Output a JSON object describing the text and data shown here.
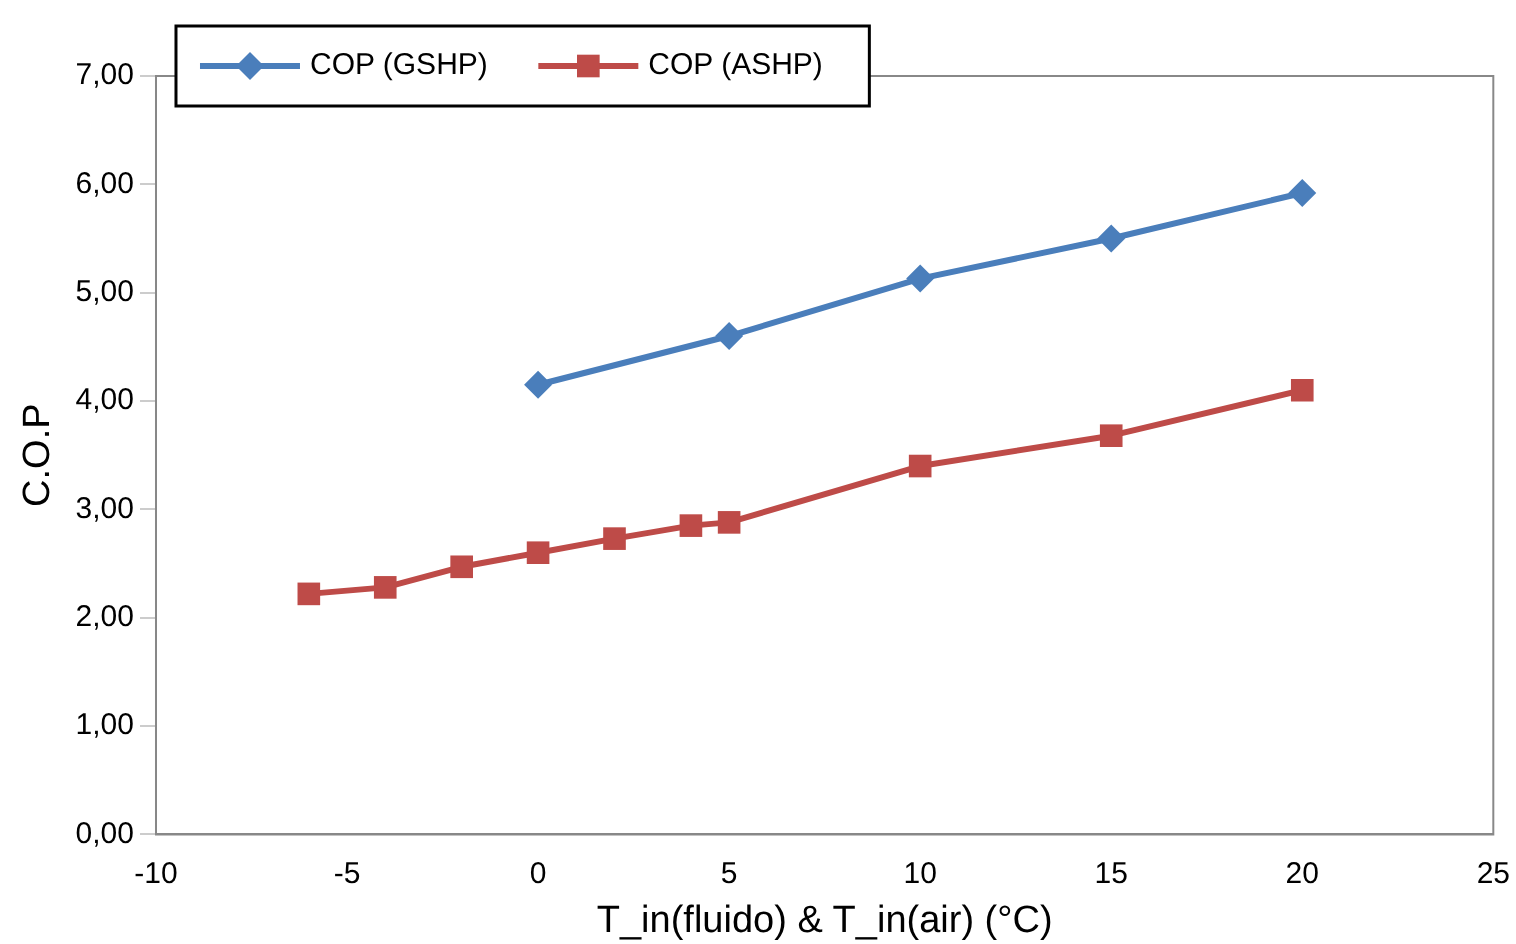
{
  "chart_data": {
    "type": "line",
    "xlabel": "T_in(fluido) & T_in(air) (°C)",
    "ylabel": "C.O.P",
    "series": [
      {
        "name": "COP (GSHP)",
        "color": "#4a7ebb",
        "marker": "diamond",
        "x": [
          0,
          5,
          10,
          15,
          20
        ],
        "values": [
          4.15,
          4.6,
          5.13,
          5.5,
          5.92
        ]
      },
      {
        "name": "COP (ASHP)",
        "color": "#be4b48",
        "marker": "square",
        "x": [
          -6,
          -4,
          -2,
          0,
          2,
          4,
          5,
          10,
          15,
          20
        ],
        "values": [
          2.22,
          2.28,
          2.47,
          2.6,
          2.73,
          2.85,
          2.88,
          3.4,
          3.68,
          4.1
        ]
      }
    ],
    "xlim": [
      -10,
      25
    ],
    "xticks": [
      -10,
      -5,
      0,
      5,
      10,
      15,
      20,
      25
    ],
    "ylim": [
      0,
      7
    ],
    "yticks": [
      {
        "value": 0,
        "label": "0,00"
      },
      {
        "value": 1,
        "label": "1,00"
      },
      {
        "value": 2,
        "label": "2,00"
      },
      {
        "value": 3,
        "label": "3,00"
      },
      {
        "value": 4,
        "label": "4,00"
      },
      {
        "value": 5,
        "label": "5,00"
      },
      {
        "value": 6,
        "label": "6,00"
      },
      {
        "value": 7,
        "label": "7,00"
      }
    ],
    "grid": false,
    "legend": "top left"
  }
}
